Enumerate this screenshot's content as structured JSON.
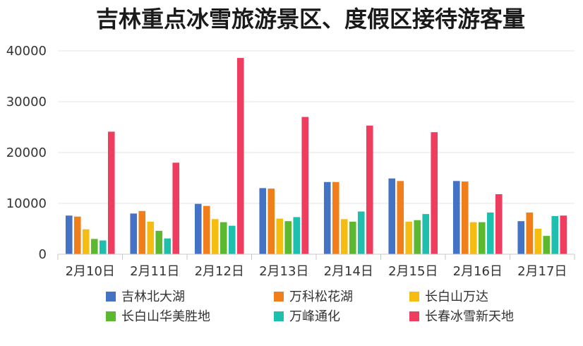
{
  "chart_data": {
    "type": "bar",
    "title": "吉林重点冰雪旅游景区、度假区接待游客量",
    "xlabel": "",
    "ylabel": "",
    "categories": [
      "2月10日",
      "2月11日",
      "2月12日",
      "2月13日",
      "2月14日",
      "2月15日",
      "2月16日",
      "2月17日"
    ],
    "ylim": [
      0,
      40000
    ],
    "yticks": [
      0,
      10000,
      20000,
      30000,
      40000
    ],
    "grid": true,
    "legend_position": "bottom",
    "series": [
      {
        "name": "吉林北大湖",
        "color": "#4472c4",
        "values": [
          7600,
          8000,
          9900,
          13000,
          14200,
          14900,
          14400,
          6500
        ]
      },
      {
        "name": "万科松花湖",
        "color": "#f07f1b",
        "values": [
          7400,
          8500,
          9500,
          12900,
          14200,
          14400,
          14300,
          8200
        ]
      },
      {
        "name": "长白山万达",
        "color": "#f5bd12",
        "values": [
          4900,
          6400,
          6900,
          7000,
          6900,
          6400,
          6300,
          5000
        ]
      },
      {
        "name": "长白山华美胜地",
        "color": "#5cb82e",
        "values": [
          3000,
          4600,
          6300,
          6500,
          6400,
          6700,
          6300,
          3600
        ]
      },
      {
        "name": "万峰通化",
        "color": "#1fbfad",
        "values": [
          2700,
          3100,
          5600,
          7300,
          8400,
          7900,
          8200,
          7500
        ]
      },
      {
        "name": "长春冰雪新天地",
        "color": "#ee3d5e",
        "values": [
          24100,
          18000,
          38600,
          27000,
          25300,
          24000,
          11800,
          7600
        ]
      }
    ]
  }
}
